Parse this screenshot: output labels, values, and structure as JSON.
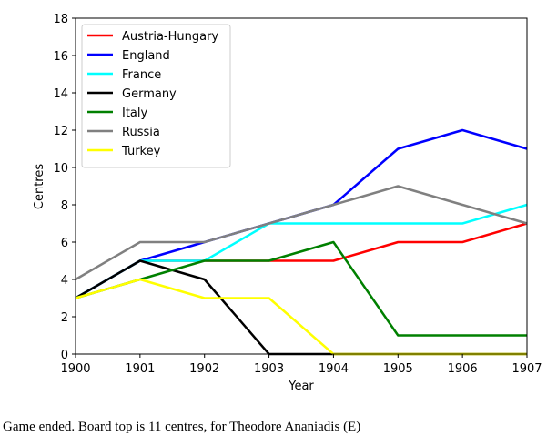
{
  "chart_data": {
    "type": "line",
    "x": [
      1900,
      1901,
      1902,
      1903,
      1904,
      1905,
      1906,
      1907
    ],
    "xlabel": "Year",
    "ylabel": "Centres",
    "xlim": [
      1900,
      1907
    ],
    "ylim": [
      0,
      18
    ],
    "xticks": [
      "1900",
      "1901",
      "1902",
      "1903",
      "1904",
      "1905",
      "1906",
      "1907"
    ],
    "yticks": [
      "0",
      "2",
      "4",
      "6",
      "8",
      "10",
      "12",
      "14",
      "16",
      "18"
    ],
    "grid": false,
    "legend_position": "top-left",
    "series": [
      {
        "name": "Austria-Hungary",
        "color": "#ff0000",
        "values": [
          3,
          5,
          5,
          5,
          5,
          6,
          6,
          7
        ]
      },
      {
        "name": "England",
        "color": "#0000ff",
        "values": [
          3,
          5,
          6,
          7,
          8,
          11,
          12,
          11
        ]
      },
      {
        "name": "France",
        "color": "#00ffff",
        "values": [
          3,
          5,
          5,
          7,
          7,
          7,
          7,
          8
        ]
      },
      {
        "name": "Germany",
        "color": "#000000",
        "values": [
          3,
          5,
          4,
          0,
          0,
          0,
          0,
          0
        ]
      },
      {
        "name": "Italy",
        "color": "#008000",
        "values": [
          3,
          4,
          5,
          5,
          6,
          1,
          1,
          1
        ]
      },
      {
        "name": "Russia",
        "color": "#808080",
        "values": [
          4,
          6,
          6,
          7,
          8,
          9,
          8,
          7
        ]
      },
      {
        "name": "Turkey",
        "color": "#ffff00",
        "values": [
          3,
          4,
          3,
          3,
          0,
          0,
          0,
          0
        ]
      }
    ]
  },
  "caption": "Game ended. Board top is 11 centres, for Theodore Ananiadis (E)"
}
